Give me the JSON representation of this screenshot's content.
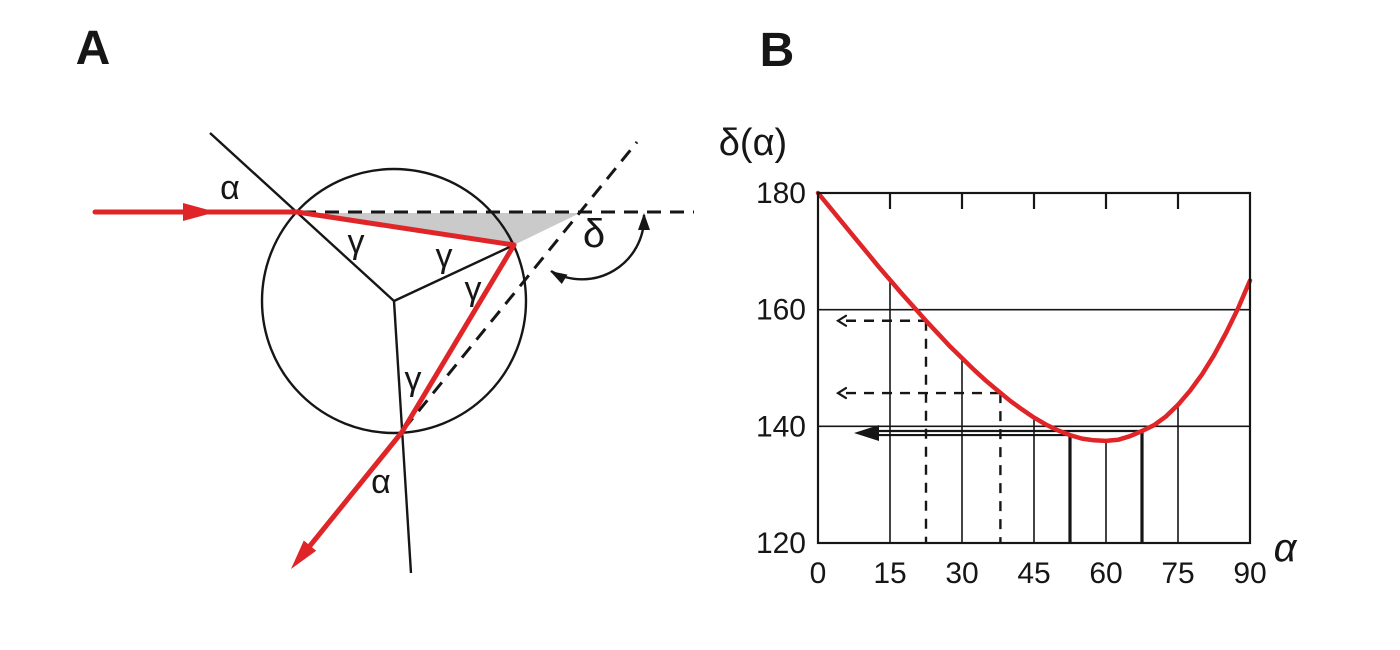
{
  "colors": {
    "ray_red": "#e02528",
    "shade_gray": "#cacaca",
    "ink_black": "#161616"
  },
  "panel_a": {
    "label": "A",
    "angle_labels": {
      "alpha_incident": "α",
      "gamma_1": "γ",
      "gamma_2": "γ",
      "gamma_3": "γ",
      "gamma_4": "γ",
      "alpha_exit": "α",
      "delta": "δ"
    }
  },
  "panel_b": {
    "label": "B",
    "y_axis_label": "δ(α)",
    "x_axis_label": "α",
    "chart_data": {
      "type": "line",
      "xlabel": "α",
      "ylabel": "δ(α)",
      "xlim": [
        0,
        90
      ],
      "ylim": [
        120,
        180
      ],
      "x_ticks": [
        0,
        15,
        30,
        45,
        60,
        75,
        90
      ],
      "y_ticks": [
        180,
        160,
        140,
        120
      ],
      "h_gridlines": [
        160,
        140
      ],
      "grid": "partial",
      "legend": "none",
      "curve_points": [
        [
          0,
          180
        ],
        [
          2.5,
          177.5
        ],
        [
          5,
          175.0
        ],
        [
          7.5,
          172.5
        ],
        [
          10,
          170.0
        ],
        [
          12.5,
          167.5
        ],
        [
          15,
          165.1
        ],
        [
          17.5,
          162.7
        ],
        [
          20,
          160.4
        ],
        [
          22.5,
          158.1
        ],
        [
          25,
          155.9
        ],
        [
          27.5,
          153.7
        ],
        [
          30,
          151.7
        ],
        [
          32.5,
          149.7
        ],
        [
          35,
          147.8
        ],
        [
          37.5,
          146.1
        ],
        [
          40,
          144.4
        ],
        [
          42.5,
          142.9
        ],
        [
          45,
          141.5
        ],
        [
          47.5,
          140.3
        ],
        [
          50,
          139.3
        ],
        [
          52.5,
          138.5
        ],
        [
          55,
          137.9
        ],
        [
          57.5,
          137.6
        ],
        [
          60,
          137.5
        ],
        [
          62.5,
          137.7
        ],
        [
          65,
          138.3
        ],
        [
          67.5,
          139.2
        ],
        [
          70,
          140.2
        ],
        [
          72.5,
          141.7
        ],
        [
          75,
          143.7
        ],
        [
          77.5,
          146.1
        ],
        [
          80,
          148.9
        ],
        [
          82.5,
          152.2
        ],
        [
          85,
          156.0
        ],
        [
          87.5,
          160.2
        ],
        [
          90,
          165.0
        ]
      ],
      "droplines": [
        {
          "alpha": 15,
          "delta": 165.1
        },
        {
          "alpha": 30,
          "delta": 151.7
        },
        {
          "alpha": 45,
          "delta": 141.5
        },
        {
          "alpha": 60,
          "delta": 137.5
        },
        {
          "alpha": 75,
          "delta": 143.7
        }
      ],
      "dashed_traces": [
        {
          "alpha": 22.5,
          "delta": 158.1
        },
        {
          "alpha": 38,
          "delta": 145.7
        }
      ],
      "min_traces": [
        {
          "alpha": 67.5,
          "delta": 139.2
        },
        {
          "alpha": 52.5,
          "delta": 138.5
        }
      ],
      "minimum": {
        "alpha": 60,
        "delta": 137.5
      }
    }
  }
}
